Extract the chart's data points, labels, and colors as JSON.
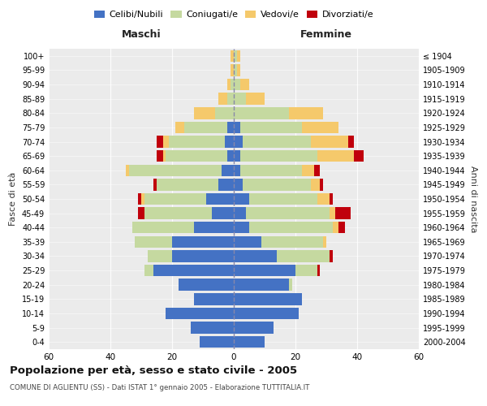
{
  "age_groups": [
    "0-4",
    "5-9",
    "10-14",
    "15-19",
    "20-24",
    "25-29",
    "30-34",
    "35-39",
    "40-44",
    "45-49",
    "50-54",
    "55-59",
    "60-64",
    "65-69",
    "70-74",
    "75-79",
    "80-84",
    "85-89",
    "90-94",
    "95-99",
    "100+"
  ],
  "birth_years": [
    "2000-2004",
    "1995-1999",
    "1990-1994",
    "1985-1989",
    "1980-1984",
    "1975-1979",
    "1970-1974",
    "1965-1969",
    "1960-1964",
    "1955-1959",
    "1950-1954",
    "1945-1949",
    "1940-1944",
    "1935-1939",
    "1930-1934",
    "1925-1929",
    "1920-1924",
    "1915-1919",
    "1910-1914",
    "1905-1909",
    "≤ 1904"
  ],
  "colors": {
    "celibi": "#4472C4",
    "coniugati": "#C5D9A0",
    "vedovi": "#F5C96B",
    "divorziati": "#C0000C"
  },
  "males": {
    "celibi": [
      11,
      14,
      22,
      13,
      18,
      26,
      20,
      20,
      13,
      7,
      9,
      5,
      4,
      2,
      3,
      2,
      0,
      0,
      0,
      0,
      0
    ],
    "coniugati": [
      0,
      0,
      0,
      0,
      0,
      3,
      8,
      12,
      20,
      22,
      20,
      20,
      30,
      20,
      18,
      14,
      6,
      2,
      1,
      0,
      0
    ],
    "vedovi": [
      0,
      0,
      0,
      0,
      0,
      0,
      0,
      0,
      0,
      0,
      1,
      0,
      1,
      1,
      2,
      3,
      7,
      3,
      1,
      1,
      1
    ],
    "divorziati": [
      0,
      0,
      0,
      0,
      0,
      0,
      0,
      0,
      0,
      2,
      1,
      1,
      0,
      2,
      2,
      0,
      0,
      0,
      0,
      0,
      0
    ]
  },
  "females": {
    "celibi": [
      10,
      13,
      21,
      22,
      18,
      20,
      14,
      9,
      5,
      4,
      5,
      3,
      2,
      2,
      3,
      2,
      0,
      0,
      0,
      0,
      0
    ],
    "coniugati": [
      0,
      0,
      0,
      0,
      1,
      7,
      17,
      20,
      27,
      27,
      22,
      22,
      20,
      25,
      22,
      20,
      18,
      4,
      2,
      1,
      1
    ],
    "vedovi": [
      0,
      0,
      0,
      0,
      0,
      0,
      0,
      1,
      2,
      2,
      4,
      3,
      4,
      12,
      12,
      12,
      11,
      6,
      3,
      1,
      1
    ],
    "divorziati": [
      0,
      0,
      0,
      0,
      0,
      1,
      1,
      0,
      2,
      5,
      1,
      1,
      2,
      3,
      2,
      0,
      0,
      0,
      0,
      0,
      0
    ]
  },
  "title": "Popolazione per età, sesso e stato civile - 2005",
  "subtitle": "COMUNE DI AGLIENTU (SS) - Dati ISTAT 1° gennaio 2005 - Elaborazione TUTTITALIA.IT",
  "xlabel_left": "Maschi",
  "xlabel_right": "Femmine",
  "ylabel_left": "Fasce di età",
  "ylabel_right": "Anni di nascita",
  "xlim": 60,
  "legend_labels": [
    "Celibi/Nubili",
    "Coniugati/e",
    "Vedovi/e",
    "Divorziati/e"
  ],
  "bg_color": "#FFFFFF",
  "plot_bg": "#EBEBEB"
}
